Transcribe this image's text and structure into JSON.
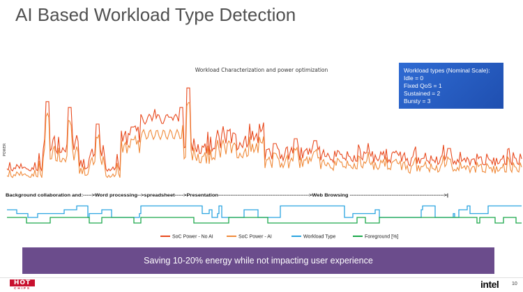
{
  "slide": {
    "title": "AI Based Workload Type Detection",
    "banner": "Saving 10-20% energy while not impacting user experience",
    "page_number": "10",
    "logo_left_top": "HOT",
    "logo_left_bottom": "CHIPS",
    "logo_right": "intel"
  },
  "workload_legend": {
    "heading": "Workload types (Nominal Scale):",
    "items": [
      "Idle = 0",
      "Fixed QoS = 1",
      "Sustained = 2",
      "Bursty = 3"
    ]
  },
  "colors": {
    "soc_no_ai": "#e8481c",
    "soc_ai": "#f08a3a",
    "workload_type": "#29a3e0",
    "foreground": "#1aa84a",
    "legend_box": "#2a62c9",
    "banner": "#6b4c8c"
  },
  "chart_data": {
    "type": "line",
    "title": "Workload Characterization and power optimization",
    "ylabel": "POWER",
    "xlabel": "",
    "grid": false,
    "legend_position": "bottom",
    "annotation": "Background collaboration and:----->Word processing-->spreadsheet----->Presentation---------------------------------------------------->Web Browsing ------------------------------------------------------>|",
    "series": [
      {
        "name": "SoC Power - No AI"
      },
      {
        "name": "SoC Power - AI"
      },
      {
        "name": "Workload Type"
      },
      {
        "name": "Foreground [%]"
      }
    ]
  }
}
